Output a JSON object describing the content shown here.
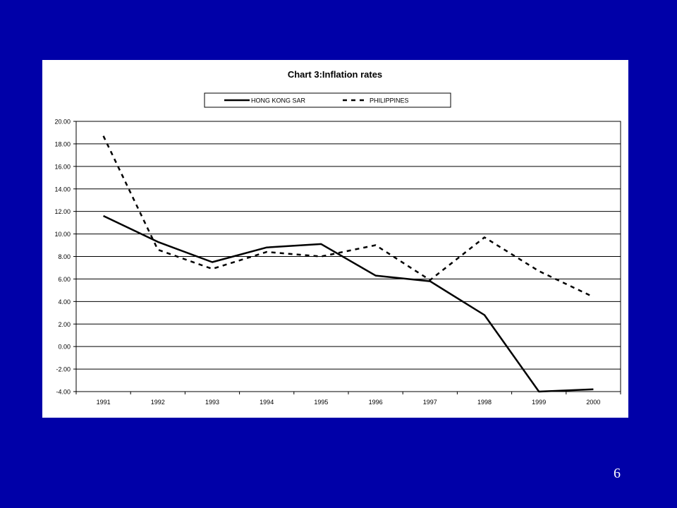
{
  "slide": {
    "background": "#0000a8",
    "page_number": "6"
  },
  "chart_data": {
    "type": "line",
    "title": "Chart 3:Inflation rates",
    "xlabel": "",
    "ylabel": "",
    "categories": [
      "1991",
      "1992",
      "1993",
      "1994",
      "1995",
      "1996",
      "1997",
      "1998",
      "1999",
      "2000"
    ],
    "ylim": [
      -4,
      20
    ],
    "yticks": [
      "-4.00",
      "-2.00",
      "0.00",
      "2.00",
      "4.00",
      "6.00",
      "8.00",
      "10.00",
      "12.00",
      "14.00",
      "16.00",
      "18.00",
      "20.00"
    ],
    "grid": "horizontal",
    "legend_position": "top",
    "series": [
      {
        "name": "HONG KONG SAR",
        "style": "solid",
        "color": "#000000",
        "values": [
          11.6,
          9.3,
          7.5,
          8.8,
          9.1,
          6.3,
          5.8,
          2.8,
          -4.0,
          -3.8
        ]
      },
      {
        "name": "PHILIPPINES",
        "style": "dashed",
        "color": "#000000",
        "values": [
          18.7,
          8.6,
          6.9,
          8.4,
          8.0,
          9.0,
          5.9,
          9.7,
          6.7,
          4.4
        ]
      }
    ]
  }
}
